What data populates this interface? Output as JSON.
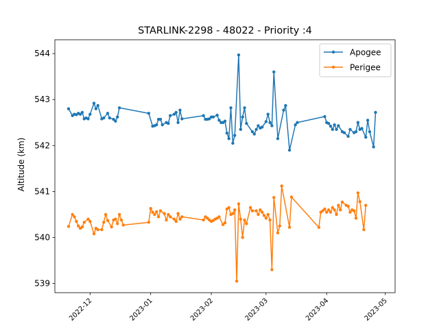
{
  "chart_data": {
    "type": "line",
    "title": "STARLINK-2298 - 48022 - Priority :4",
    "xlabel": "",
    "ylabel": "Altitude (km)",
    "xlim": [
      "2022-11-13",
      "2023-05-06"
    ],
    "ylim": [
      538.8,
      544.3
    ],
    "x_ticks": [
      "2022-12",
      "2023-01",
      "2023-02",
      "2023-03",
      "2023-04",
      "2023-05"
    ],
    "x_tick_dates": [
      "2022-12-01",
      "2023-01-01",
      "2023-02-01",
      "2023-03-01",
      "2023-04-01",
      "2023-05-01"
    ],
    "y_ticks": [
      539,
      540,
      541,
      542,
      543,
      544
    ],
    "grid": false,
    "legend_position": "top-right",
    "series": [
      {
        "name": "Apogee",
        "color": "#1f77b4",
        "points": [
          [
            "2022-11-20",
            542.8
          ],
          [
            "2022-11-22",
            542.65
          ],
          [
            "2022-11-23",
            542.68
          ],
          [
            "2022-11-24",
            542.67
          ],
          [
            "2022-11-25",
            542.7
          ],
          [
            "2022-11-26",
            542.68
          ],
          [
            "2022-11-27",
            542.72
          ],
          [
            "2022-11-28",
            542.58
          ],
          [
            "2022-11-29",
            542.6
          ],
          [
            "2022-11-30",
            542.58
          ],
          [
            "2022-12-01",
            542.68
          ],
          [
            "2022-12-03",
            542.92
          ],
          [
            "2022-12-04",
            542.8
          ],
          [
            "2022-12-05",
            542.87
          ],
          [
            "2022-12-07",
            542.58
          ],
          [
            "2022-12-08",
            542.6
          ],
          [
            "2022-12-10",
            542.7
          ],
          [
            "2022-12-11",
            542.6
          ],
          [
            "2022-12-13",
            542.57
          ],
          [
            "2022-12-14",
            542.53
          ],
          [
            "2022-12-15",
            542.62
          ],
          [
            "2022-12-16",
            542.82
          ],
          [
            "2022-12-31",
            542.7
          ],
          [
            "2023-01-02",
            542.42
          ],
          [
            "2023-01-03",
            542.43
          ],
          [
            "2023-01-04",
            542.45
          ],
          [
            "2023-01-05",
            542.57
          ],
          [
            "2023-01-06",
            542.57
          ],
          [
            "2023-01-07",
            542.45
          ],
          [
            "2023-01-09",
            542.5
          ],
          [
            "2023-01-10",
            542.48
          ],
          [
            "2023-01-11",
            542.65
          ],
          [
            "2023-01-13",
            542.68
          ],
          [
            "2023-01-14",
            542.72
          ],
          [
            "2023-01-15",
            542.5
          ],
          [
            "2023-01-16",
            542.77
          ],
          [
            "2023-01-17",
            542.58
          ],
          [
            "2023-01-28",
            542.65
          ],
          [
            "2023-01-29",
            542.57
          ],
          [
            "2023-01-30",
            542.57
          ],
          [
            "2023-01-31",
            542.58
          ],
          [
            "2023-02-01",
            542.62
          ],
          [
            "2023-02-02",
            542.62
          ],
          [
            "2023-02-04",
            542.66
          ],
          [
            "2023-02-05",
            542.55
          ],
          [
            "2023-02-06",
            542.5
          ],
          [
            "2023-02-07",
            542.5
          ],
          [
            "2023-02-08",
            542.53
          ],
          [
            "2023-02-09",
            542.27
          ],
          [
            "2023-02-10",
            542.15
          ],
          [
            "2023-02-11",
            542.82
          ],
          [
            "2023-02-12",
            542.05
          ],
          [
            "2023-02-13",
            542.22
          ],
          [
            "2023-02-15",
            543.97
          ],
          [
            "2023-02-16",
            542.35
          ],
          [
            "2023-02-17",
            542.62
          ],
          [
            "2023-02-18",
            542.82
          ],
          [
            "2023-02-19",
            542.48
          ],
          [
            "2023-02-22",
            542.3
          ],
          [
            "2023-02-23",
            542.25
          ],
          [
            "2023-02-24",
            542.35
          ],
          [
            "2023-02-25",
            542.43
          ],
          [
            "2023-02-26",
            542.38
          ],
          [
            "2023-02-27",
            542.4
          ],
          [
            "2023-03-01",
            542.52
          ],
          [
            "2023-03-02",
            542.68
          ],
          [
            "2023-03-03",
            542.5
          ],
          [
            "2023-03-04",
            542.43
          ],
          [
            "2023-03-05",
            543.6
          ],
          [
            "2023-03-07",
            542.15
          ],
          [
            "2023-03-10",
            542.77
          ],
          [
            "2023-03-11",
            542.87
          ],
          [
            "2023-03-13",
            541.9
          ],
          [
            "2023-03-16",
            542.45
          ],
          [
            "2023-03-17",
            542.5
          ],
          [
            "2023-03-31",
            542.63
          ],
          [
            "2023-04-01",
            542.5
          ],
          [
            "2023-04-02",
            542.48
          ],
          [
            "2023-04-03",
            542.42
          ],
          [
            "2023-04-04",
            542.35
          ],
          [
            "2023-04-05",
            542.45
          ],
          [
            "2023-04-06",
            542.35
          ],
          [
            "2023-04-07",
            542.43
          ],
          [
            "2023-04-09",
            542.3
          ],
          [
            "2023-04-10",
            542.28
          ],
          [
            "2023-04-12",
            542.2
          ],
          [
            "2023-04-13",
            542.35
          ],
          [
            "2023-04-15",
            542.28
          ],
          [
            "2023-04-16",
            542.3
          ],
          [
            "2023-04-17",
            542.5
          ],
          [
            "2023-04-18",
            542.35
          ],
          [
            "2023-04-19",
            542.37
          ],
          [
            "2023-04-21",
            542.18
          ],
          [
            "2023-04-22",
            542.55
          ],
          [
            "2023-04-23",
            542.3
          ],
          [
            "2023-04-25",
            541.97
          ],
          [
            "2023-04-26",
            542.72
          ]
        ]
      },
      {
        "name": "Perigee",
        "color": "#ff7f0e",
        "points": [
          [
            "2022-11-20",
            540.24
          ],
          [
            "2022-11-22",
            540.5
          ],
          [
            "2022-11-23",
            540.45
          ],
          [
            "2022-11-24",
            540.35
          ],
          [
            "2022-11-25",
            540.25
          ],
          [
            "2022-11-26",
            540.2
          ],
          [
            "2022-11-27",
            540.23
          ],
          [
            "2022-11-28",
            540.33
          ],
          [
            "2022-11-30",
            540.4
          ],
          [
            "2022-12-01",
            540.35
          ],
          [
            "2022-12-03",
            540.08
          ],
          [
            "2022-12-04",
            540.2
          ],
          [
            "2022-12-05",
            540.17
          ],
          [
            "2022-12-07",
            540.17
          ],
          [
            "2022-12-08",
            540.33
          ],
          [
            "2022-12-09",
            540.5
          ],
          [
            "2022-12-10",
            540.37
          ],
          [
            "2022-12-12",
            540.23
          ],
          [
            "2022-12-13",
            540.38
          ],
          [
            "2022-12-14",
            540.4
          ],
          [
            "2022-12-15",
            540.3
          ],
          [
            "2022-12-16",
            540.5
          ],
          [
            "2022-12-17",
            540.38
          ],
          [
            "2022-12-18",
            540.27
          ],
          [
            "2022-12-31",
            540.33
          ],
          [
            "2023-01-01",
            540.63
          ],
          [
            "2023-01-02",
            540.55
          ],
          [
            "2023-01-03",
            540.5
          ],
          [
            "2023-01-04",
            540.56
          ],
          [
            "2023-01-05",
            540.45
          ],
          [
            "2023-01-06",
            540.58
          ],
          [
            "2023-01-08",
            540.52
          ],
          [
            "2023-01-09",
            540.38
          ],
          [
            "2023-01-10",
            540.5
          ],
          [
            "2023-01-11",
            540.45
          ],
          [
            "2023-01-13",
            540.4
          ],
          [
            "2023-01-14",
            540.35
          ],
          [
            "2023-01-15",
            540.52
          ],
          [
            "2023-01-16",
            540.4
          ],
          [
            "2023-01-17",
            540.45
          ],
          [
            "2023-01-28",
            540.38
          ],
          [
            "2023-01-29",
            540.45
          ],
          [
            "2023-01-30",
            540.42
          ],
          [
            "2023-01-31",
            540.38
          ],
          [
            "2023-02-01",
            540.35
          ],
          [
            "2023-02-02",
            540.37
          ],
          [
            "2023-02-03",
            540.4
          ],
          [
            "2023-02-04",
            540.42
          ],
          [
            "2023-02-05",
            540.45
          ],
          [
            "2023-02-07",
            540.28
          ],
          [
            "2023-02-08",
            540.32
          ],
          [
            "2023-02-09",
            540.62
          ],
          [
            "2023-02-10",
            540.65
          ],
          [
            "2023-02-11",
            540.5
          ],
          [
            "2023-02-12",
            540.52
          ],
          [
            "2023-02-13",
            540.6
          ],
          [
            "2023-02-14",
            539.05
          ],
          [
            "2023-02-15",
            540.73
          ],
          [
            "2023-02-16",
            540.4
          ],
          [
            "2023-02-17",
            540.0
          ],
          [
            "2023-02-18",
            540.38
          ],
          [
            "2023-02-19",
            540.3
          ],
          [
            "2023-02-21",
            540.65
          ],
          [
            "2023-02-22",
            540.58
          ],
          [
            "2023-02-24",
            540.58
          ],
          [
            "2023-02-25",
            540.5
          ],
          [
            "2023-02-26",
            540.6
          ],
          [
            "2023-02-27",
            540.55
          ],
          [
            "2023-02-28",
            540.48
          ],
          [
            "2023-03-01",
            540.42
          ],
          [
            "2023-03-02",
            540.5
          ],
          [
            "2023-03-03",
            540.38
          ],
          [
            "2023-03-04",
            539.3
          ],
          [
            "2023-03-05",
            540.87
          ],
          [
            "2023-03-07",
            540.1
          ],
          [
            "2023-03-08",
            540.25
          ],
          [
            "2023-03-09",
            541.12
          ],
          [
            "2023-03-13",
            540.22
          ],
          [
            "2023-03-14",
            540.88
          ],
          [
            "2023-03-28",
            540.22
          ],
          [
            "2023-03-29",
            540.55
          ],
          [
            "2023-03-30",
            540.58
          ],
          [
            "2023-03-31",
            540.62
          ],
          [
            "2023-04-01",
            540.55
          ],
          [
            "2023-04-02",
            540.6
          ],
          [
            "2023-04-03",
            540.55
          ],
          [
            "2023-04-04",
            540.65
          ],
          [
            "2023-04-05",
            540.6
          ],
          [
            "2023-04-06",
            540.5
          ],
          [
            "2023-04-07",
            540.7
          ],
          [
            "2023-04-08",
            540.6
          ],
          [
            "2023-04-09",
            540.77
          ],
          [
            "2023-04-11",
            540.7
          ],
          [
            "2023-04-12",
            540.68
          ],
          [
            "2023-04-13",
            540.55
          ],
          [
            "2023-04-14",
            540.6
          ],
          [
            "2023-04-15",
            540.58
          ],
          [
            "2023-04-16",
            540.42
          ],
          [
            "2023-04-17",
            540.97
          ],
          [
            "2023-04-18",
            540.78
          ],
          [
            "2023-04-20",
            540.17
          ],
          [
            "2023-04-21",
            540.7
          ]
        ]
      }
    ]
  }
}
